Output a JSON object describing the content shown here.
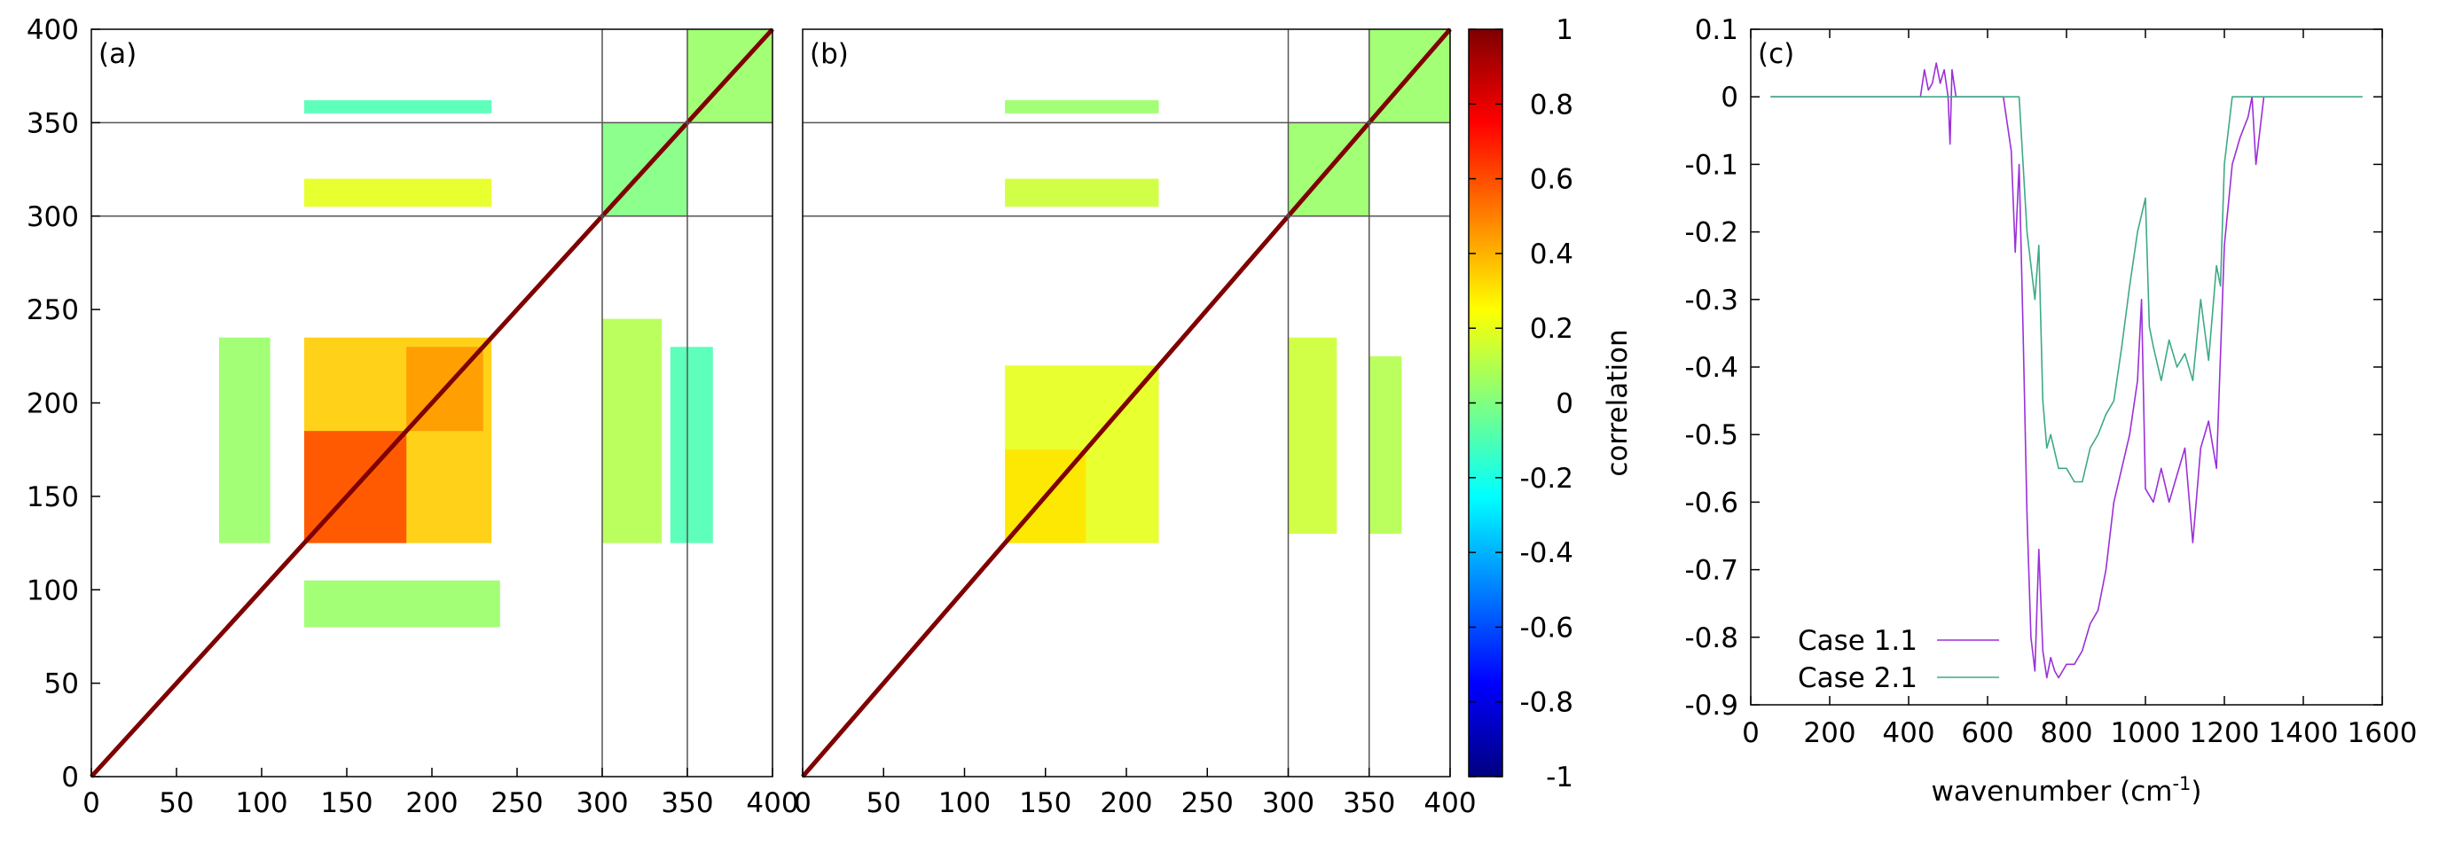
{
  "figure": {
    "panels": [
      {
        "id": "a",
        "label": "(a)"
      },
      {
        "id": "b",
        "label": "(b)"
      },
      {
        "id": "c",
        "label": "(c)"
      }
    ],
    "colors": {
      "case_1_1": "#9b30d8",
      "case_2_1": "#3daa86",
      "frame": "#000000",
      "divider": "#555555"
    }
  },
  "chart_data": [
    {
      "type": "heatmap",
      "panel": "(a)",
      "title": "",
      "xlabel": "",
      "ylabel": "",
      "xlim": [
        0,
        400
      ],
      "ylim": [
        0,
        400
      ],
      "xticks": [
        0,
        50,
        100,
        150,
        200,
        250,
        300,
        350,
        400
      ],
      "yticks": [
        0,
        50,
        100,
        150,
        200,
        250,
        300,
        350,
        400
      ],
      "block_boundaries": [
        300,
        350
      ],
      "diagonal_value": 1,
      "blocks": [
        {
          "x": [
            125,
            235
          ],
          "y": [
            125,
            235
          ],
          "value": 0.35
        },
        {
          "x": [
            125,
            185
          ],
          "y": [
            125,
            185
          ],
          "value": 0.6
        },
        {
          "x": [
            185,
            230
          ],
          "y": [
            185,
            230
          ],
          "value": 0.45
        },
        {
          "x": [
            75,
            105
          ],
          "y": [
            125,
            235
          ],
          "value": 0.05
        },
        {
          "x": [
            125,
            240
          ],
          "y": [
            80,
            105
          ],
          "value": 0.05
        },
        {
          "x": [
            300,
            335
          ],
          "y": [
            125,
            245
          ],
          "value": 0.1
        },
        {
          "x": [
            340,
            365
          ],
          "y": [
            125,
            230
          ],
          "value": -0.1
        },
        {
          "x": [
            125,
            235
          ],
          "y": [
            305,
            320
          ],
          "value": 0.2
        },
        {
          "x": [
            125,
            235
          ],
          "y": [
            355,
            362
          ],
          "value": -0.1
        },
        {
          "x": [
            300,
            350
          ],
          "y": [
            300,
            350
          ],
          "value": 0.0
        },
        {
          "x": [
            350,
            400
          ],
          "y": [
            350,
            400
          ],
          "value": 0.05
        }
      ],
      "colorbar": {
        "label": "",
        "range": [
          -1,
          1
        ]
      }
    },
    {
      "type": "heatmap",
      "panel": "(b)",
      "title": "",
      "xlabel": "",
      "ylabel": "",
      "xlim": [
        0,
        400
      ],
      "ylim": [
        0,
        400
      ],
      "xticks": [
        0,
        50,
        100,
        150,
        200,
        250,
        300,
        350,
        400
      ],
      "block_boundaries": [
        300,
        350
      ],
      "diagonal_value": 1,
      "blocks": [
        {
          "x": [
            125,
            220
          ],
          "y": [
            125,
            220
          ],
          "value": 0.2
        },
        {
          "x": [
            125,
            175
          ],
          "y": [
            125,
            175
          ],
          "value": 0.3
        },
        {
          "x": [
            300,
            330
          ],
          "y": [
            130,
            235
          ],
          "value": 0.15
        },
        {
          "x": [
            350,
            370
          ],
          "y": [
            130,
            225
          ],
          "value": 0.1
        },
        {
          "x": [
            125,
            220
          ],
          "y": [
            305,
            320
          ],
          "value": 0.15
        },
        {
          "x": [
            125,
            220
          ],
          "y": [
            355,
            362
          ],
          "value": 0.05
        },
        {
          "x": [
            300,
            350
          ],
          "y": [
            300,
            350
          ],
          "value": 0.05
        },
        {
          "x": [
            350,
            400
          ],
          "y": [
            350,
            400
          ],
          "value": 0.05
        }
      ],
      "colorbar": {
        "label": "correlation",
        "range": [
          -1,
          1
        ],
        "ticks": [
          "1",
          "0.8",
          "0.6",
          "0.4",
          "0.2",
          "0",
          "-0.2",
          "-0.4",
          "-0.6",
          "-0.8",
          "-1"
        ]
      }
    },
    {
      "type": "line",
      "panel": "(c)",
      "title": "",
      "xlabel": "wavenumber (cm⁻¹)",
      "ylabel": "",
      "xlim": [
        0,
        1600
      ],
      "ylim": [
        -0.9,
        0.1
      ],
      "xticks": [
        "0",
        "200",
        "400",
        "600",
        "800",
        "1000",
        "1200",
        "1400",
        "1600"
      ],
      "yticks": [
        "0.1",
        "0",
        "-0.1",
        "-0.2",
        "-0.3",
        "-0.4",
        "-0.5",
        "-0.6",
        "-0.7",
        "-0.8",
        "-0.9"
      ],
      "legend_position": "bottom-left",
      "series": [
        {
          "name": "Case 1.1",
          "x": [
            50,
            400,
            430,
            440,
            450,
            460,
            470,
            480,
            490,
            500,
            505,
            510,
            520,
            540,
            560,
            600,
            640,
            660,
            670,
            680,
            690,
            700,
            710,
            720,
            730,
            740,
            750,
            760,
            770,
            780,
            790,
            800,
            820,
            840,
            860,
            880,
            900,
            920,
            940,
            960,
            980,
            990,
            1000,
            1020,
            1040,
            1060,
            1080,
            1100,
            1120,
            1140,
            1160,
            1180,
            1200,
            1220,
            1240,
            1260,
            1270,
            1280,
            1300
          ],
          "y": [
            0,
            0,
            0.0,
            0.04,
            0.01,
            0.02,
            0.05,
            0.02,
            0.04,
            0.0,
            -0.07,
            0.04,
            0.0,
            0.0,
            0.0,
            0.0,
            0.0,
            -0.08,
            -0.23,
            -0.1,
            -0.35,
            -0.62,
            -0.8,
            -0.85,
            -0.67,
            -0.82,
            -0.86,
            -0.83,
            -0.85,
            -0.86,
            -0.85,
            -0.84,
            -0.84,
            -0.82,
            -0.78,
            -0.76,
            -0.7,
            -0.6,
            -0.55,
            -0.5,
            -0.42,
            -0.3,
            -0.58,
            -0.6,
            -0.55,
            -0.6,
            -0.56,
            -0.52,
            -0.66,
            -0.52,
            -0.48,
            -0.55,
            -0.22,
            -0.1,
            -0.06,
            -0.03,
            -0.0,
            -0.1,
            0.0
          ]
        },
        {
          "name": "Case 2.1",
          "x": [
            50,
            600,
            640,
            660,
            680,
            700,
            720,
            730,
            740,
            750,
            760,
            780,
            800,
            820,
            840,
            860,
            880,
            900,
            920,
            940,
            960,
            980,
            1000,
            1010,
            1020,
            1040,
            1060,
            1080,
            1100,
            1120,
            1140,
            1160,
            1180,
            1190,
            1200,
            1220,
            1240,
            1280,
            1550
          ],
          "y": [
            0,
            0,
            0.0,
            0.0,
            0.0,
            -0.2,
            -0.3,
            -0.22,
            -0.45,
            -0.52,
            -0.5,
            -0.55,
            -0.55,
            -0.57,
            -0.57,
            -0.52,
            -0.5,
            -0.47,
            -0.45,
            -0.37,
            -0.28,
            -0.2,
            -0.15,
            -0.34,
            -0.37,
            -0.42,
            -0.36,
            -0.4,
            -0.38,
            -0.42,
            -0.3,
            -0.39,
            -0.25,
            -0.28,
            -0.1,
            0.0,
            0.0,
            0.0,
            0
          ]
        }
      ]
    }
  ]
}
